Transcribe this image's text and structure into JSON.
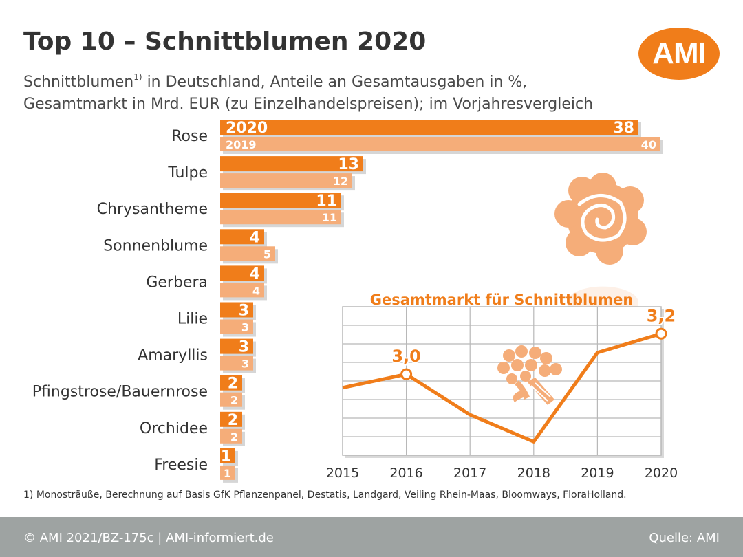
{
  "header": {
    "title": "Top 10 – Schnittblumen 2020",
    "subtitle_line1_pre": "Schnittblumen",
    "subtitle_sup": "1)",
    "subtitle_line1_post": " in Deutschland, Anteile an Gesamtausgaben in %,",
    "subtitle_line2": "Gesamtmarkt in Mrd. EUR (zu Einzelhandelspreisen); im Vorjahresvergleich",
    "logo_text": "AMI"
  },
  "colors": {
    "bar_2020": "#f07d1a",
    "bar_2019": "#f5ad79",
    "line": "#f07d1a",
    "grid": "#b8b8b8",
    "text": "#333333",
    "footer_bg": "#9ea3a2"
  },
  "chart_data": [
    {
      "type": "bar",
      "orientation": "horizontal",
      "title": "Schnittblumen in Deutschland, Anteile an Gesamtausgaben in %",
      "categories": [
        "Rose",
        "Tulpe",
        "Chrysantheme",
        "Sonnenblume",
        "Gerbera",
        "Lilie",
        "Amaryllis",
        "Pfingstrose/Bauernrose",
        "Orchidee",
        "Freesie"
      ],
      "series": [
        {
          "name": "2020",
          "values": [
            38,
            13,
            11,
            4,
            4,
            3,
            3,
            2,
            2,
            1
          ]
        },
        {
          "name": "2019",
          "values": [
            40,
            12,
            11,
            5,
            4,
            3,
            3,
            2,
            2,
            1
          ]
        }
      ],
      "series_labels_in_first_bar": [
        "2020",
        "2019"
      ],
      "xlim": [
        0,
        40
      ]
    },
    {
      "type": "line",
      "title": "Gesamtmarkt für Schnittblumen",
      "x": [
        "2015",
        "2016",
        "2017",
        "2018",
        "2019",
        "2020"
      ],
      "values": [
        3.0,
        3.05,
        2.9,
        2.8,
        3.13,
        3.2
      ],
      "annotations": [
        {
          "x": "2016",
          "label": "3,0"
        },
        {
          "x": "2020",
          "label": "3,2"
        }
      ],
      "ylim": [
        2.75,
        3.3
      ]
    }
  ],
  "footnote": "1) Monosträuße, Berechnung auf Basis GfK Pflanzenpanel, Destatis, Landgard, Veiling Rhein-Maas, Bloomways, FloraHolland.",
  "footer": {
    "left": "© AMI 2021/BZ-175c | AMI-informiert.de",
    "right": "Quelle: AMI"
  }
}
